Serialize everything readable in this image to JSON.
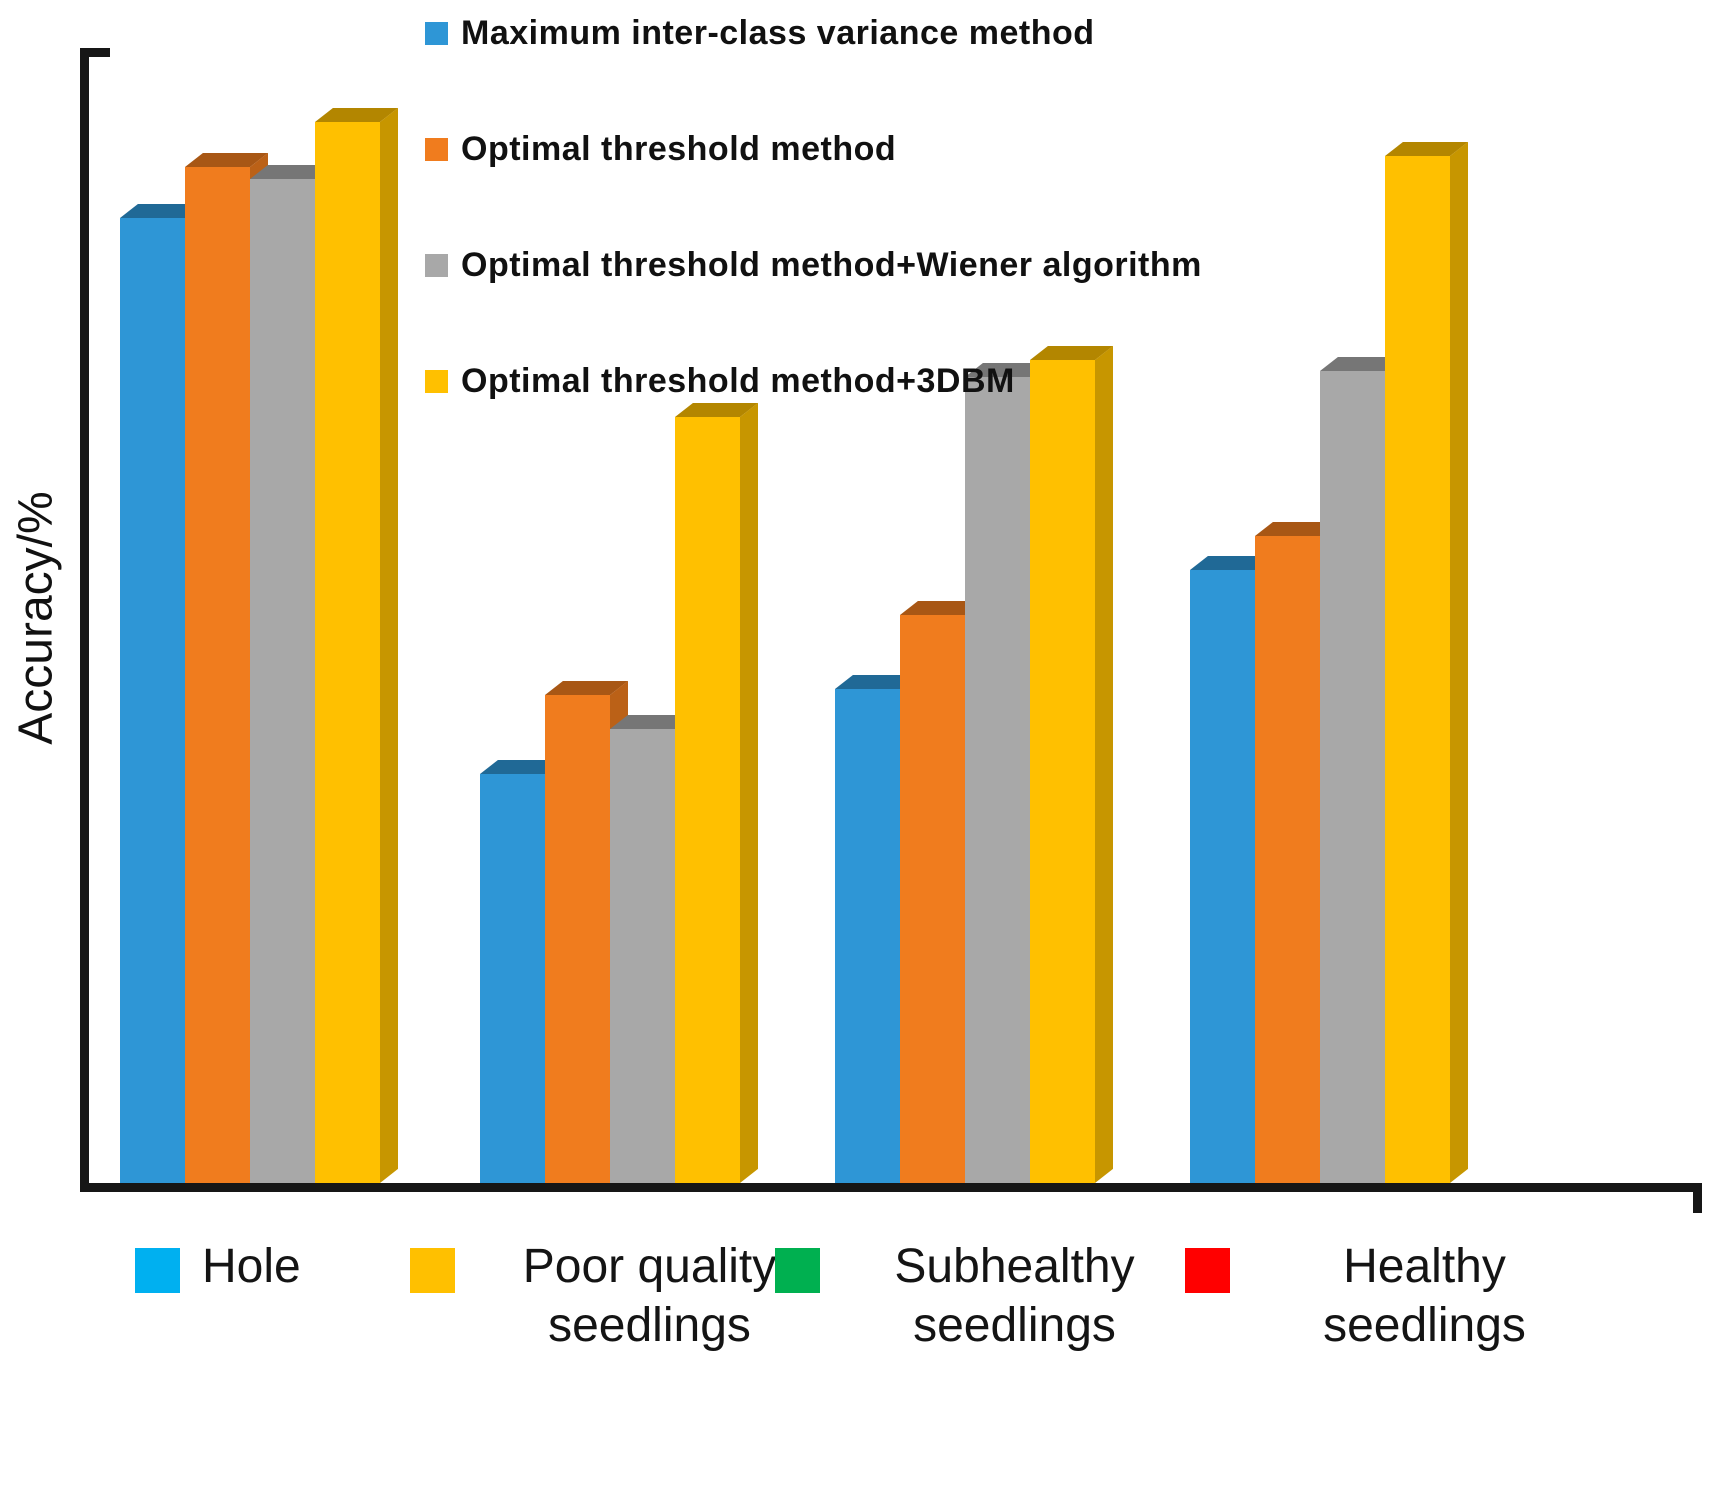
{
  "chart_data": {
    "type": "bar",
    "title": "",
    "xlabel": "",
    "ylabel": "Accuracy/%",
    "ylim": [
      0,
      100
    ],
    "y_tick_labels": [],
    "grid": false,
    "legend_position": "top-inside",
    "style": "3d-bars",
    "axis_color": "#161616",
    "categories": [
      "Hole",
      "Poor quality seedlings",
      "Subhealthy seedlings",
      "Healthy seedlings"
    ],
    "category_colors": [
      "#00B0F0",
      "#FFC000",
      "#00B050",
      "#FF0000"
    ],
    "series": [
      {
        "name": "Maximum inter-class variance method",
        "color": "#2E96D6",
        "values": [
          85,
          36,
          43.5,
          54
        ]
      },
      {
        "name": "Optimal threshold method",
        "color": "#F07C1E",
        "values": [
          89.5,
          43,
          50,
          57
        ]
      },
      {
        "name": "Optimal threshold method+Wiener algorithm",
        "color": "#A8A8A8",
        "values": [
          88.5,
          40,
          71,
          71.5
        ]
      },
      {
        "name": "Optimal threshold method+3DBM",
        "color": "#FFC000",
        "values": [
          93.5,
          67.5,
          72.5,
          90.5
        ]
      }
    ]
  }
}
